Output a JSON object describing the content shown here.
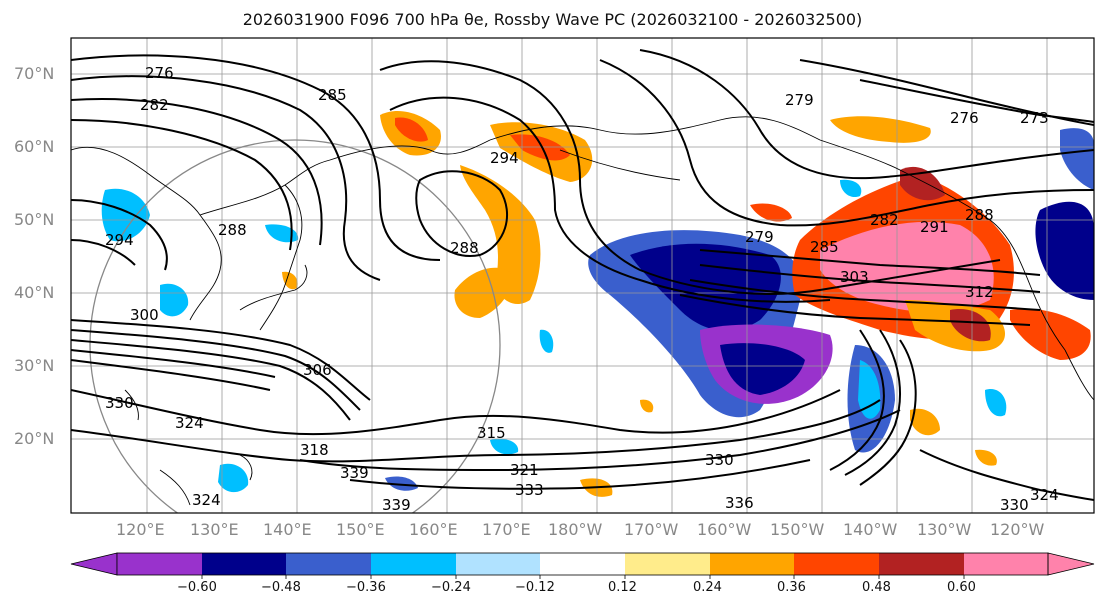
{
  "title": "2026031900 F096 700 hPa θe, Rossby Wave PC (2026032100 - 2026032500)",
  "lat_labels": [
    "70°N",
    "60°N",
    "50°N",
    "40°N",
    "30°N",
    "20°N"
  ],
  "lon_labels": [
    "120°E",
    "130°E",
    "140°E",
    "150°E",
    "160°E",
    "170°E",
    "180°W",
    "170°W",
    "160°W",
    "150°W",
    "140°W",
    "130°W",
    "120°W"
  ],
  "contour_labels": [
    "276",
    "282",
    "285",
    "279",
    "276",
    "273",
    "294",
    "288",
    "288",
    "294",
    "279",
    "285",
    "282",
    "291",
    "288",
    "303",
    "312",
    "300",
    "306",
    "330",
    "324",
    "315",
    "318",
    "339",
    "321",
    "333",
    "330",
    "336",
    "339",
    "324",
    "330",
    "324"
  ],
  "colorbar": {
    "ticks": [
      "−0.60",
      "−0.48",
      "−0.36",
      "−0.24",
      "−0.12",
      "0.12",
      "0.24",
      "0.36",
      "0.48",
      "0.60"
    ],
    "colors": [
      "#9932cc",
      "#00008b",
      "#3a5fcd",
      "#00bfff",
      "#b0e2ff",
      "#ffffff",
      "#ffec8b",
      "#ffa500",
      "#ff4500",
      "#b22222",
      "#ff82ab"
    ]
  }
}
